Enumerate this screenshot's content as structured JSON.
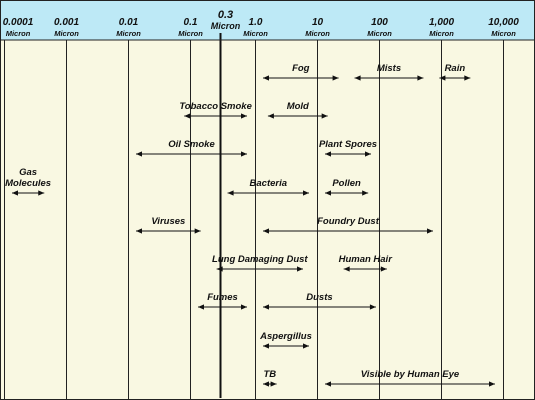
{
  "scale": {
    "unit": "Micron",
    "ticks": [
      "0.0001",
      "0.001",
      "0.01",
      "0.1",
      "1.0",
      "10",
      "100",
      "1,000",
      "10,000"
    ],
    "tick_values": [
      0.0001,
      0.001,
      0.01,
      0.1,
      1,
      10,
      100,
      1000,
      10000
    ],
    "highlight": {
      "value": 0.3,
      "label": "0.3",
      "unit": "Micron"
    }
  },
  "colors": {
    "header": "#bde9f6",
    "background": "#f9f8e2",
    "line": "#222222",
    "text": "#111111"
  },
  "ranges": [
    {
      "label": "Fog",
      "min": 1,
      "max": 30,
      "row": 1
    },
    {
      "label": "Mists",
      "min": 30,
      "max": 700,
      "row": 1
    },
    {
      "label": "Rain",
      "min": 700,
      "max": 4000,
      "row": 1
    },
    {
      "label": "Tobacco Smoke",
      "min": 0.06,
      "max": 1,
      "row": 2
    },
    {
      "label": "Mold",
      "min": 1.2,
      "max": 20,
      "row": 2
    },
    {
      "label": "Oil Smoke",
      "min": 0.01,
      "max": 1,
      "row": 3
    },
    {
      "label": "Plant Spores",
      "min": 10,
      "max": 100,
      "row": 3
    },
    {
      "label": "Gas Molecules",
      "lines": [
        "Gas",
        "Molecules"
      ],
      "min": 0.0001,
      "max": 0.0006,
      "row": 4
    },
    {
      "label": "Bacteria",
      "min": 0.3,
      "max": 10,
      "row": 4
    },
    {
      "label": "Pollen",
      "min": 10,
      "max": 90,
      "row": 4
    },
    {
      "label": "Viruses",
      "min": 0.01,
      "max": 0.2,
      "row": 5
    },
    {
      "label": "Foundry Dust",
      "min": 1,
      "max": 1000,
      "row": 5
    },
    {
      "label": "Lung Damaging Dust",
      "min": 0.2,
      "max": 8,
      "row": 6
    },
    {
      "label": "Human Hair",
      "min": 20,
      "max": 180,
      "row": 6
    },
    {
      "label": "Fumes",
      "min": 0.1,
      "max": 1,
      "row": 7
    },
    {
      "label": "Dusts",
      "min": 1,
      "max": 120,
      "row": 7
    },
    {
      "label": "Aspergillus",
      "min": 1,
      "max": 10,
      "row": 8
    },
    {
      "label": "TB",
      "min": 1,
      "max": 3,
      "row": 9
    },
    {
      "label": "Visible by Human Eye",
      "min": 10,
      "max": 10000,
      "row": 9
    }
  ]
}
